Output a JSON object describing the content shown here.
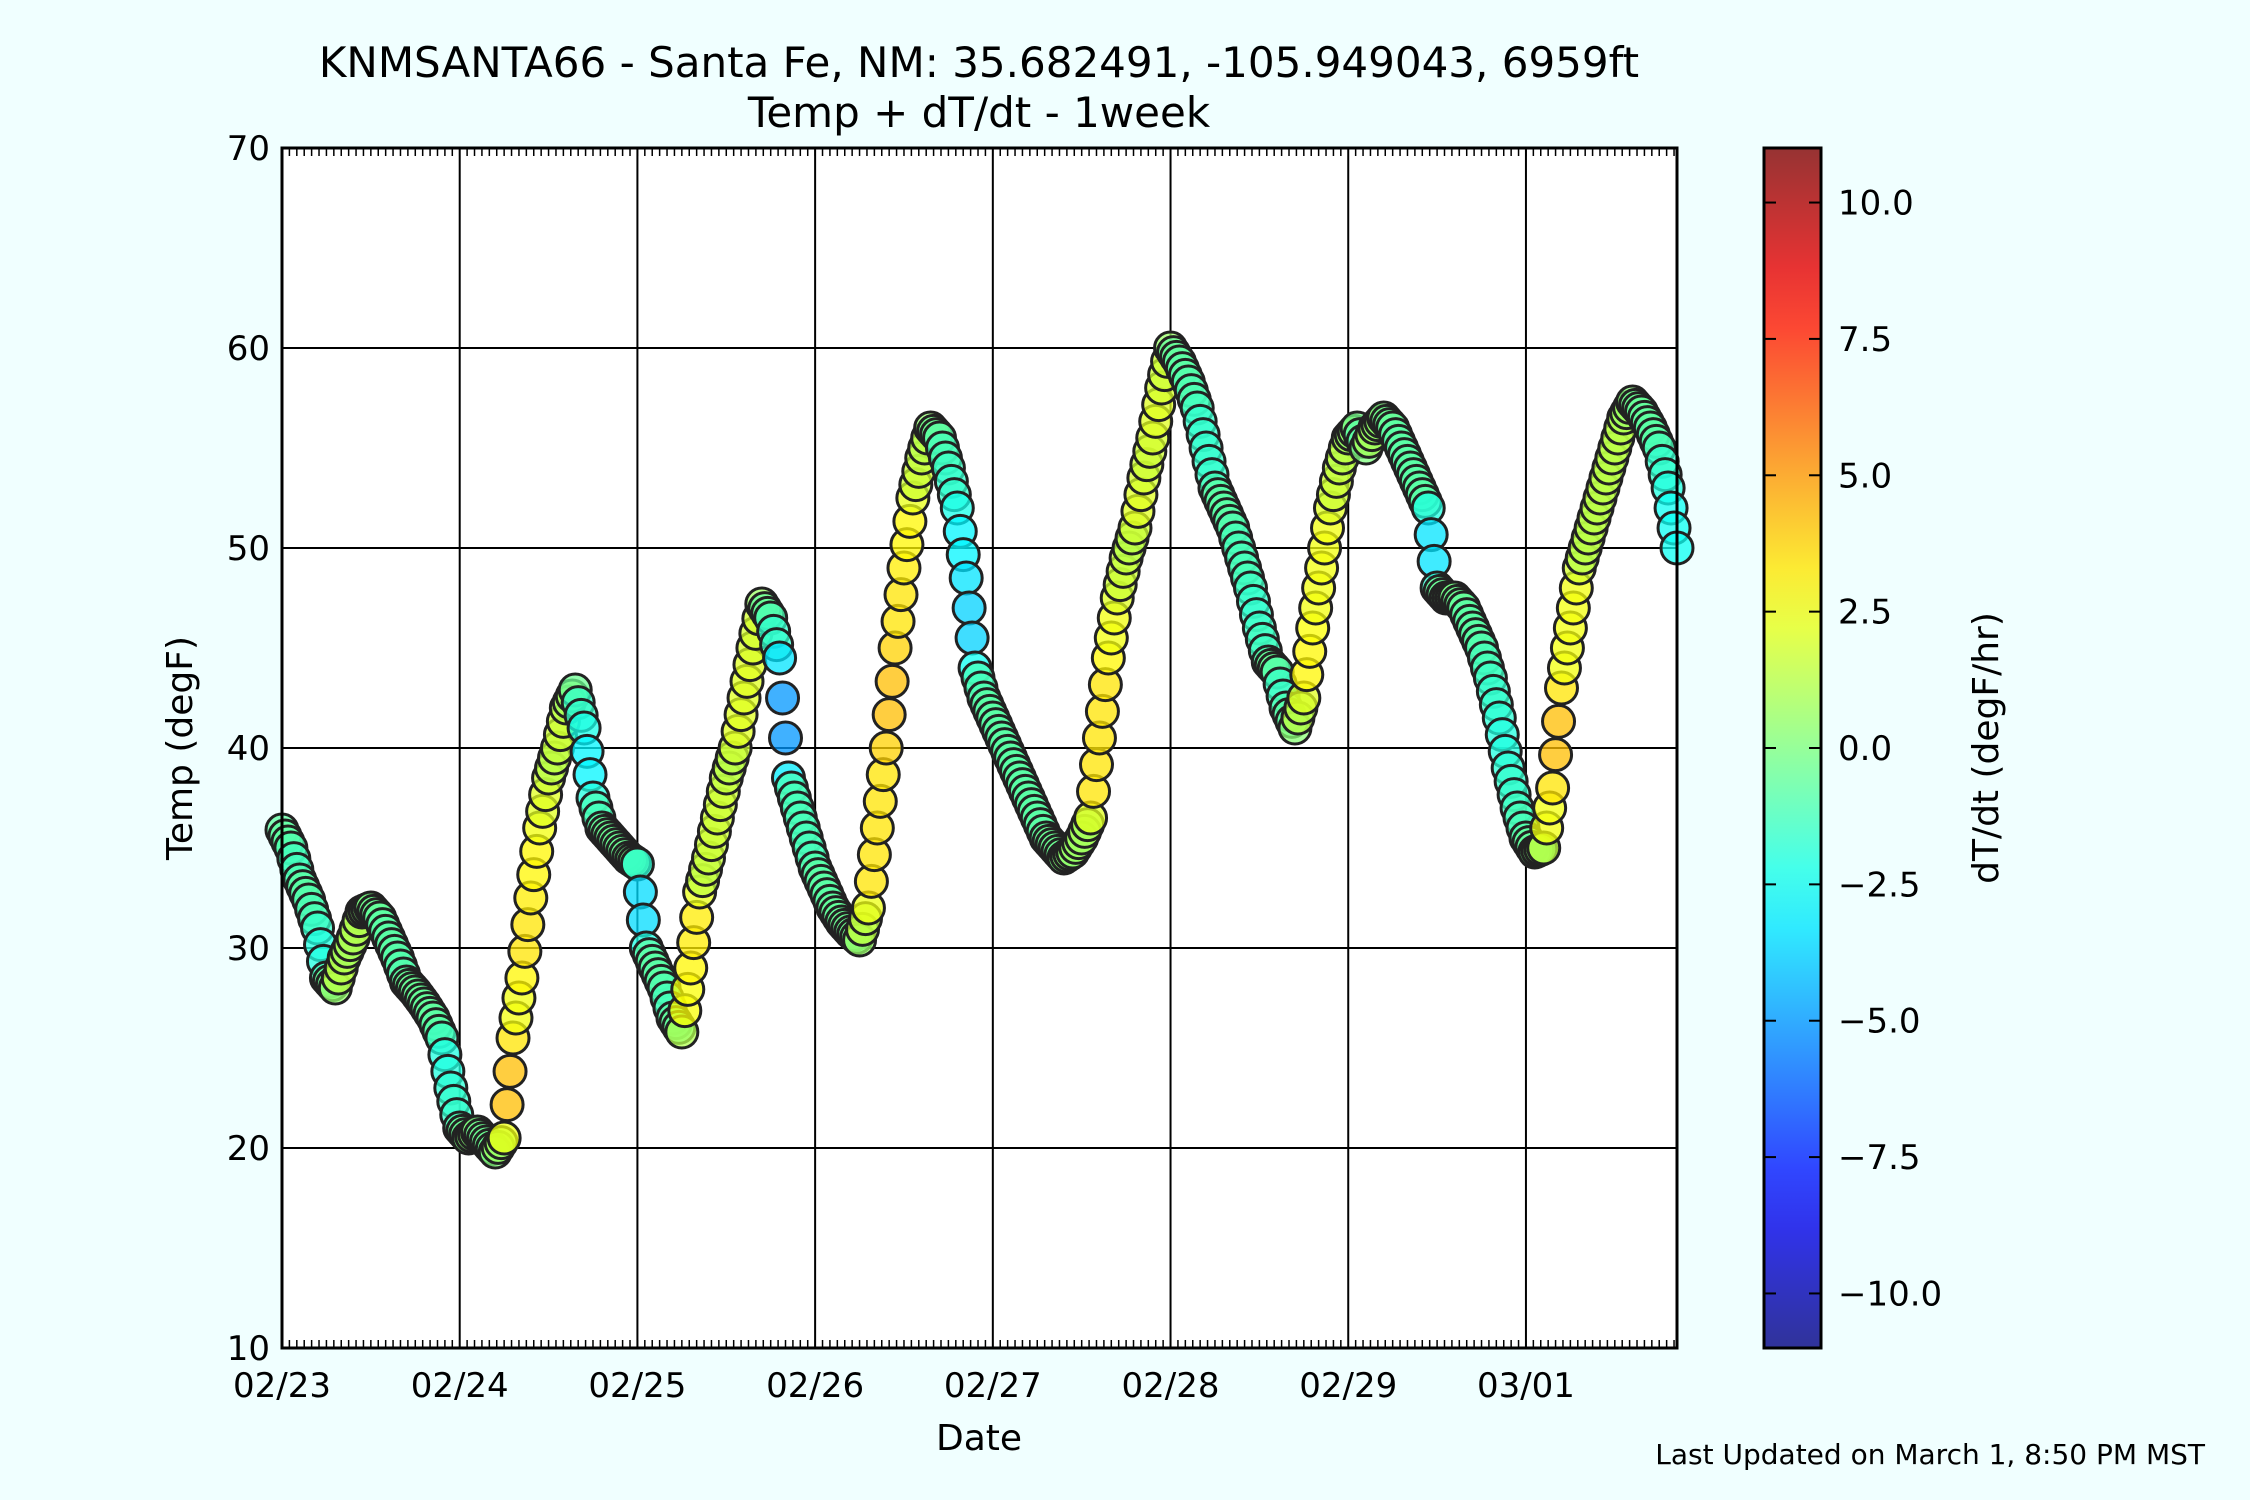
{
  "chart_data": {
    "type": "scatter",
    "title": "KNMSANTA66 - Santa Fe, NM: 35.682491, -105.949043, 6959ft",
    "subtitle": "Temp + dT/dt - 1week",
    "xlabel": "Date",
    "ylabel": "Temp (degF)",
    "ylim": [
      10,
      70
    ],
    "yticks": [
      10,
      20,
      30,
      40,
      50,
      60,
      70
    ],
    "x_range_days": [
      0,
      7.85
    ],
    "x_ticks": [
      {
        "day": 0,
        "label": "02/23"
      },
      {
        "day": 1,
        "label": "02/24"
      },
      {
        "day": 2,
        "label": "02/25"
      },
      {
        "day": 3,
        "label": "02/26"
      },
      {
        "day": 4,
        "label": "02/27"
      },
      {
        "day": 5,
        "label": "02/28"
      },
      {
        "day": 6,
        "label": "02/29"
      },
      {
        "day": 7,
        "label": "03/01"
      }
    ],
    "grid": true,
    "colorbar": {
      "label": "dT/dt (degF/hr)",
      "range": [
        -11,
        11
      ],
      "ticks": [
        10.0,
        7.5,
        5.0,
        2.5,
        0.0,
        -2.5,
        -5.0,
        -7.5,
        -10.0
      ],
      "tick_labels": [
        "10.0",
        "7.5",
        "5.0",
        "2.5",
        "0.0",
        "−2.5",
        "−5.0",
        "−7.5",
        "−10.0"
      ],
      "colormap": "jet"
    },
    "footer": "Last Updated on March 1, 8:50 PM MST",
    "anchor_points": [
      [
        0.0,
        35.9
      ],
      [
        0.05,
        35.0
      ],
      [
        0.1,
        33.4
      ],
      [
        0.15,
        32.4
      ],
      [
        0.2,
        31.0
      ],
      [
        0.25,
        28.5
      ],
      [
        0.3,
        28.0
      ],
      [
        0.35,
        29.5
      ],
      [
        0.4,
        30.5
      ],
      [
        0.45,
        31.8
      ],
      [
        0.5,
        32.0
      ],
      [
        0.55,
        31.5
      ],
      [
        0.6,
        30.5
      ],
      [
        0.65,
        29.5
      ],
      [
        0.7,
        28.3
      ],
      [
        0.75,
        27.8
      ],
      [
        0.8,
        27.2
      ],
      [
        0.85,
        26.5
      ],
      [
        0.9,
        25.5
      ],
      [
        0.95,
        23.0
      ],
      [
        1.0,
        21.0
      ],
      [
        1.05,
        20.5
      ],
      [
        1.1,
        20.8
      ],
      [
        1.15,
        20.3
      ],
      [
        1.2,
        19.8
      ],
      [
        1.25,
        20.5
      ],
      [
        1.3,
        25.5
      ],
      [
        1.35,
        28.5
      ],
      [
        1.4,
        32.5
      ],
      [
        1.45,
        36.0
      ],
      [
        1.5,
        38.5
      ],
      [
        1.55,
        40.0
      ],
      [
        1.6,
        42.0
      ],
      [
        1.65,
        42.9
      ],
      [
        1.7,
        41.0
      ],
      [
        1.75,
        37.5
      ],
      [
        1.8,
        36.0
      ],
      [
        1.85,
        35.5
      ],
      [
        1.9,
        35.0
      ],
      [
        1.95,
        34.5
      ],
      [
        2.0,
        34.2
      ],
      [
        2.05,
        30.0
      ],
      [
        2.1,
        29.0
      ],
      [
        2.15,
        28.0
      ],
      [
        2.2,
        26.5
      ],
      [
        2.25,
        25.8
      ],
      [
        2.3,
        29.0
      ],
      [
        2.35,
        32.8
      ],
      [
        2.4,
        34.5
      ],
      [
        2.45,
        36.5
      ],
      [
        2.5,
        38.5
      ],
      [
        2.55,
        40.0
      ],
      [
        2.6,
        42.5
      ],
      [
        2.65,
        45.0
      ],
      [
        2.7,
        47.2
      ],
      [
        2.75,
        46.5
      ],
      [
        2.8,
        44.5
      ],
      [
        2.85,
        38.5
      ],
      [
        2.9,
        37.0
      ],
      [
        2.95,
        35.5
      ],
      [
        3.0,
        34.0
      ],
      [
        3.05,
        33.0
      ],
      [
        3.1,
        32.0
      ],
      [
        3.15,
        31.3
      ],
      [
        3.2,
        30.8
      ],
      [
        3.25,
        30.4
      ],
      [
        3.3,
        32.0
      ],
      [
        3.35,
        36.0
      ],
      [
        3.4,
        40.0
      ],
      [
        3.45,
        45.0
      ],
      [
        3.5,
        49.0
      ],
      [
        3.55,
        52.5
      ],
      [
        3.6,
        54.5
      ],
      [
        3.65,
        56.0
      ],
      [
        3.7,
        55.5
      ],
      [
        3.75,
        54.0
      ],
      [
        3.8,
        52.0
      ],
      [
        3.85,
        48.5
      ],
      [
        3.9,
        44.0
      ],
      [
        3.95,
        42.5
      ],
      [
        4.0,
        41.5
      ],
      [
        4.05,
        40.5
      ],
      [
        4.1,
        39.5
      ],
      [
        4.15,
        38.5
      ],
      [
        4.2,
        37.5
      ],
      [
        4.25,
        36.5
      ],
      [
        4.3,
        35.5
      ],
      [
        4.35,
        35.0
      ],
      [
        4.4,
        34.5
      ],
      [
        4.45,
        34.8
      ],
      [
        4.5,
        35.5
      ],
      [
        4.55,
        36.5
      ],
      [
        4.6,
        40.5
      ],
      [
        4.65,
        44.5
      ],
      [
        4.7,
        47.5
      ],
      [
        4.75,
        49.5
      ],
      [
        4.8,
        51.0
      ],
      [
        4.85,
        53.5
      ],
      [
        4.9,
        55.5
      ],
      [
        4.95,
        58.0
      ],
      [
        5.0,
        60.0
      ],
      [
        5.05,
        59.3
      ],
      [
        5.1,
        58.3
      ],
      [
        5.15,
        57.0
      ],
      [
        5.2,
        55.0
      ],
      [
        5.25,
        53.0
      ],
      [
        5.3,
        52.0
      ],
      [
        5.35,
        51.0
      ],
      [
        5.4,
        49.5
      ],
      [
        5.45,
        48.0
      ],
      [
        5.5,
        46.0
      ],
      [
        5.55,
        44.3
      ],
      [
        5.6,
        43.8
      ],
      [
        5.65,
        42.0
      ],
      [
        5.7,
        41.0
      ],
      [
        5.75,
        42.5
      ],
      [
        5.8,
        46.0
      ],
      [
        5.85,
        49.0
      ],
      [
        5.9,
        52.0
      ],
      [
        5.95,
        54.0
      ],
      [
        6.0,
        55.5
      ],
      [
        6.05,
        56.0
      ],
      [
        6.1,
        55.0
      ],
      [
        6.15,
        56.0
      ],
      [
        6.2,
        56.5
      ],
      [
        6.25,
        56.0
      ],
      [
        6.3,
        55.0
      ],
      [
        6.35,
        54.0
      ],
      [
        6.4,
        53.0
      ],
      [
        6.45,
        52.0
      ],
      [
        6.5,
        48.0
      ],
      [
        6.55,
        47.5
      ],
      [
        6.6,
        47.5
      ],
      [
        6.65,
        47.0
      ],
      [
        6.7,
        46.0
      ],
      [
        6.75,
        45.0
      ],
      [
        6.8,
        43.5
      ],
      [
        6.85,
        41.5
      ],
      [
        6.9,
        39.0
      ],
      [
        6.95,
        37.0
      ],
      [
        7.0,
        35.5
      ],
      [
        7.05,
        34.8
      ],
      [
        7.1,
        35.0
      ],
      [
        7.15,
        38.0
      ],
      [
        7.2,
        43.0
      ],
      [
        7.25,
        46.0
      ],
      [
        7.3,
        49.0
      ],
      [
        7.35,
        50.5
      ],
      [
        7.4,
        52.0
      ],
      [
        7.45,
        53.5
      ],
      [
        7.5,
        55.0
      ],
      [
        7.55,
        56.5
      ],
      [
        7.6,
        57.3
      ],
      [
        7.65,
        56.8
      ],
      [
        7.7,
        56.0
      ],
      [
        7.75,
        55.0
      ],
      [
        7.8,
        53.0
      ],
      [
        7.85,
        50.0
      ]
    ]
  },
  "fills": {
    "background": "#f0ffff",
    "plot_area": "#ffffff"
  }
}
